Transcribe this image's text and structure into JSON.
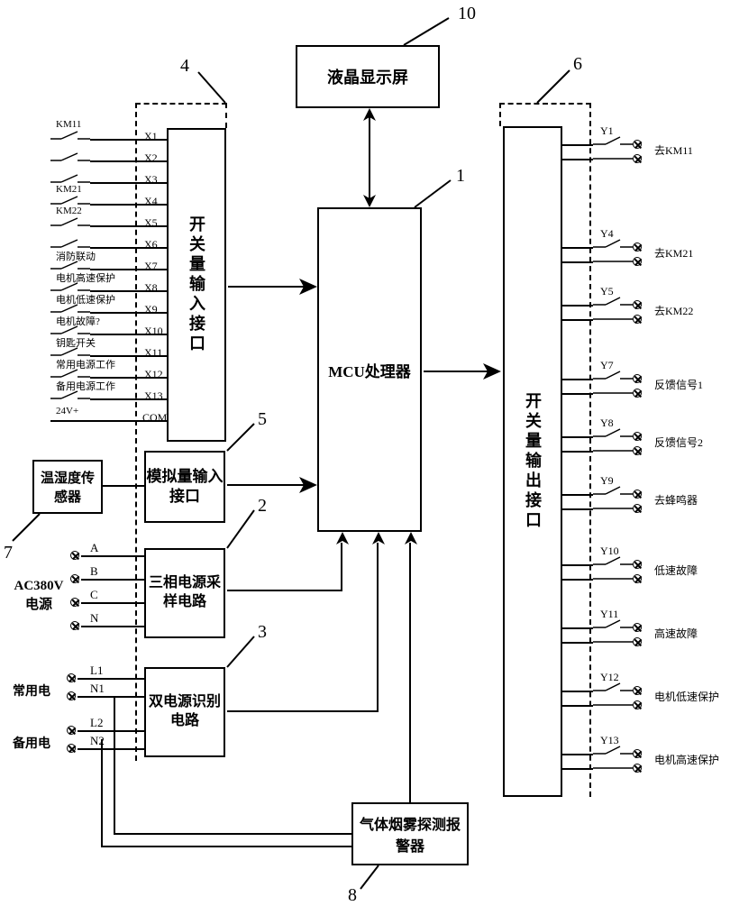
{
  "callouts": {
    "n1": "1",
    "n2": "2",
    "n3": "3",
    "n4": "4",
    "n5": "5",
    "n6": "6",
    "n7": "7",
    "n8": "8",
    "n10": "10"
  },
  "blocks": {
    "lcd": "液晶显示屏",
    "mcu": "MCU处理器",
    "din": "开关量输入接口",
    "ain": "模拟量输入接口",
    "phase3": "三相电源采样电路",
    "dualpwr": "双电源识别电路",
    "dout": "开关量输出接口",
    "temp": "温湿度传感器",
    "smoke": "气体烟雾探测报警器"
  },
  "left_inputs": {
    "rows": [
      {
        "lbl": "KM11",
        "x": "X1"
      },
      {
        "lbl": "",
        "x": "X2"
      },
      {
        "lbl": "",
        "x": "X3"
      },
      {
        "lbl": "KM21",
        "x": "X4"
      },
      {
        "lbl": "KM22",
        "x": "X5"
      },
      {
        "lbl": "",
        "x": "X6"
      },
      {
        "lbl": "消防联动",
        "x": "X7"
      },
      {
        "lbl": "电机高速保护",
        "x": "X8"
      },
      {
        "lbl": "电机低速保护",
        "x": "X9"
      },
      {
        "lbl": "电机故障?",
        "x": "X10"
      },
      {
        "lbl": "钥匙开关",
        "x": "X11"
      },
      {
        "lbl": "常用电源工作",
        "x": "X12"
      },
      {
        "lbl": "备用电源工作",
        "x": "X13"
      }
    ],
    "tail": {
      "lbl": "24V+",
      "x": "COM"
    }
  },
  "ac380": {
    "title": "AC380V\n电源",
    "phases": [
      "A",
      "B",
      "C",
      "N"
    ]
  },
  "dualpwr_in": {
    "main": "常用电",
    "main_lines": [
      "L1",
      "N1"
    ],
    "bak": "备用电",
    "bak_lines": [
      "L2",
      "N2"
    ]
  },
  "right_outputs": {
    "rows": [
      {
        "y": "Y1",
        "lbl": "去KM11"
      },
      {
        "y": "Y4",
        "lbl": "去KM21"
      },
      {
        "y": "Y5",
        "lbl": "去KM22"
      },
      {
        "y": "Y7",
        "lbl": "反馈信号1"
      },
      {
        "y": "Y8",
        "lbl": "反馈信号2"
      },
      {
        "y": "Y9",
        "lbl": "去蜂鸣器"
      },
      {
        "y": "Y10",
        "lbl": "低速故障"
      },
      {
        "y": "Y11",
        "lbl": "高速故障"
      },
      {
        "y": "Y12",
        "lbl": "电机低速保护"
      },
      {
        "y": "Y13",
        "lbl": "电机高速保护"
      }
    ]
  }
}
